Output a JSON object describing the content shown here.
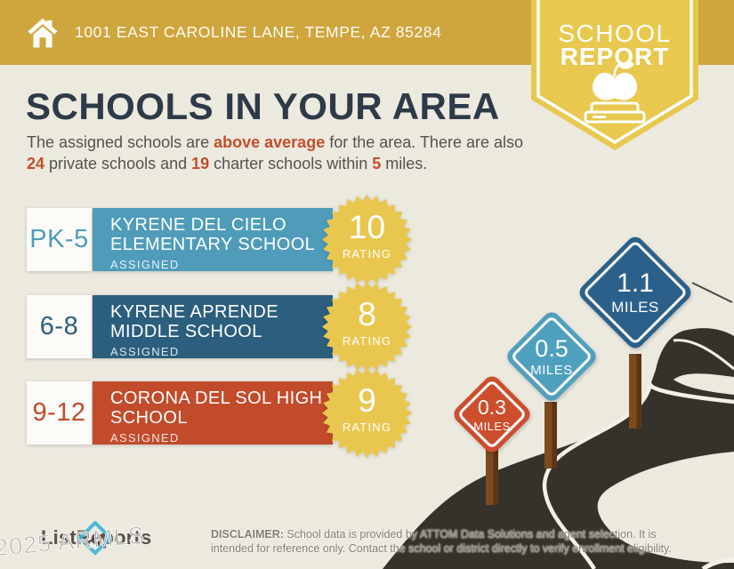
{
  "header": {
    "address": "1001 EAST CAROLINE LANE, TEMPE, AZ 85284"
  },
  "ribbon": {
    "line1": "SCHOOL",
    "line2": "REPORT"
  },
  "page_title": "SCHOOLS IN YOUR AREA",
  "intro": {
    "pre": "The assigned schools are ",
    "hl1": "above average",
    "mid1": " for the area. There are also ",
    "hl2": "24",
    "mid2": " private schools and ",
    "hl3": "19",
    "mid3": " charter schools within ",
    "hl4": "5",
    "post": " miles."
  },
  "schools": [
    {
      "grades": "PK-5",
      "name_line1": "KYRENE DEL CIELO",
      "name_line2": "ELEMENTARY SCHOOL",
      "status": "ASSIGNED",
      "rating": "10",
      "rating_label": "RATING",
      "color": "#4f9cba"
    },
    {
      "grades": "6-8",
      "name_line1": "KYRENE APRENDE",
      "name_line2": "MIDDLE SCHOOL",
      "status": "ASSIGNED",
      "rating": "8",
      "rating_label": "RATING",
      "color": "#2c5e7e"
    },
    {
      "grades": "9-12",
      "name_line1": "CORONA DEL SOL HIGH",
      "name_line2": "SCHOOL",
      "status": "ASSIGNED",
      "rating": "9",
      "rating_label": "RATING",
      "color": "#c14b2b"
    }
  ],
  "signs": [
    {
      "distance": "0.3",
      "unit": "MILES",
      "color": "#cc4e2d"
    },
    {
      "distance": "0.5",
      "unit": "MILES",
      "color": "#4f9fbe"
    },
    {
      "distance": "1.1",
      "unit": "MILES",
      "color": "#2b608a"
    }
  ],
  "footer": {
    "logo_text": "ListReports",
    "watermark": "2025 ARMLS",
    "disclaimer_label": "DISCLAIMER:",
    "disclaimer_rest": " School data is provided by ATTOM Data Solutions and agent selection. It is intended for reference only. Contact the school or district directly to verify enrollment eligibility."
  },
  "colors": {
    "header_gold": "#cfa53d",
    "ribbon_yellow": "#e8c84e",
    "burst_yellow": "#e9c74f",
    "background": "#ece9df",
    "road": "#35322c",
    "title_navy": "#2e3a48",
    "highlight_orange": "#c44e2b"
  }
}
